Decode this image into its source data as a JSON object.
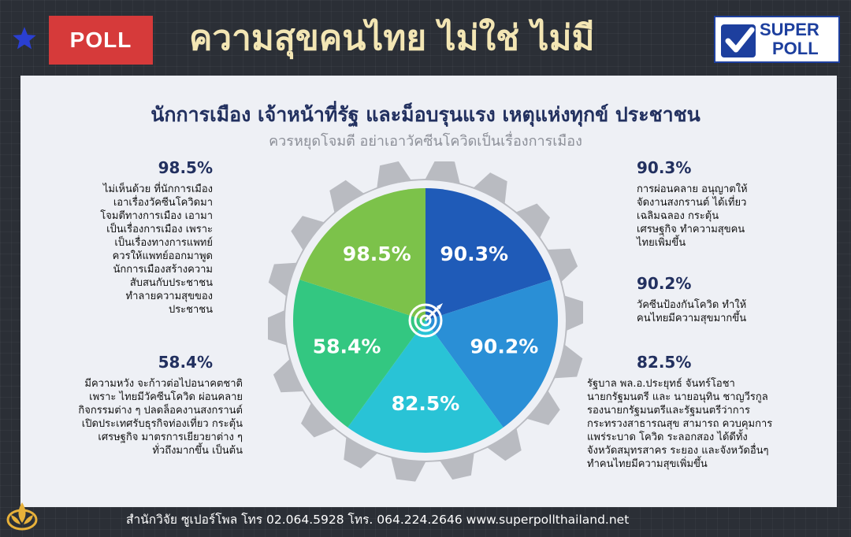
{
  "header": {
    "badge": "POLL",
    "title": "ความสุขคนไทย ไม่ใช่ ไม่มี",
    "logo_line1": "SUPER",
    "logo_line2": "POLL"
  },
  "subtitle": "นักการเมือง เจ้าหน้าที่รัฐ และม็อบรุนแรง เหตุแห่งทุกข์ ประชาชน",
  "subtitle2": "ควรหยุดโจมตี อย่าเอาวัคซีนโควิดเป็นเรื่องการเมือง",
  "items": [
    {
      "pct": "98.5%",
      "text": [
        "ไม่เห็นด้วย ที่นักการเมือง",
        "เอาเรื่องวัคซีนโควิดมา",
        "โจมตีทางการเมือง เอามา",
        "เป็นเรื่องการเมือง เพราะ",
        "เป็นเรื่องทางการแพทย์",
        "ควรให้แพทย์ออกมาพูด",
        "นักการเมืองสร้างความ",
        "สับสนกับประชาชน",
        "ทำลายความสุขของ",
        "ประชาชน"
      ]
    },
    {
      "pct": "58.4%",
      "text": [
        "มีความหวัง จะก้าวต่อไปอนาคตชาติ",
        "เพราะ ไทยมีวัคซีนโควิด ผ่อนคลาย",
        "กิจกรรมต่าง ๆ ปลดล็อคงานสงกรานต์",
        "เปิดประเทศรับธุรกิจท่องเที่ยว กระตุ้น",
        "เศรษฐกิจ มาตรการเยียวยาต่าง ๆ",
        "ทั่วถึงมากขึ้น เป็นต้น"
      ]
    },
    {
      "pct": "90.3%",
      "text": [
        "การผ่อนคลาย อนุญาตให้",
        "จัดงานสงกรานต์ ได้เที่ยว",
        "เฉลิมฉลอง กระตุ้น",
        "เศรษฐกิจ ทำความสุขคน",
        "ไทยเพิ่มขึ้น"
      ]
    },
    {
      "pct": "90.2%",
      "text": [
        "วัคซีนป้องกันโควิด ทำให้",
        "คนไทยมีความสุขมากขึ้น"
      ]
    },
    {
      "pct": "82.5%",
      "text": [
        "รัฐบาล พล.อ.ประยุทธ์ จันทร์โอชา",
        "นายกรัฐมนตรี และ นายอนุทิน ชาญวีรกูล",
        "รองนายกรัฐมนตรีและรัฐมนตรีว่าการ",
        "กระทรวงสาธารณสุข สามารถ ควบคุมการ",
        "แพร่ระบาด โควิด ระลอกสอง ได้ดีทั้ง",
        "จังหวัดสมุทรสาคร ระยอง และจังหวัดอื่นๆ",
        "ทำคนไทยมีความสุขเพิ่มขึ้น"
      ]
    }
  ],
  "chart_data": {
    "type": "pie",
    "note_equal_slices": true,
    "slices": [
      {
        "label": "90.3%",
        "value": 90.3,
        "color": "#1f5bb8"
      },
      {
        "label": "90.2%",
        "value": 90.2,
        "color": "#2a8fd6"
      },
      {
        "label": "82.5%",
        "value": 82.5,
        "color": "#29c3d6"
      },
      {
        "label": "58.4%",
        "value": 58.4,
        "color": "#33c781"
      },
      {
        "label": "98.5%",
        "value": 98.5,
        "color": "#7cc24a"
      }
    ],
    "center_icon": "target-icon",
    "gear_color": "#b9bbc1"
  },
  "footer": "สำนักวิจัย ซูเปอร์โพล โทร 02.064.5928  โทร. 064.224.2646 www.superpollthailand.net",
  "colors": {
    "accent": "#d63a3a",
    "title": "#f3e6b4",
    "navy": "#22305f",
    "star": "#2a3fd1"
  }
}
